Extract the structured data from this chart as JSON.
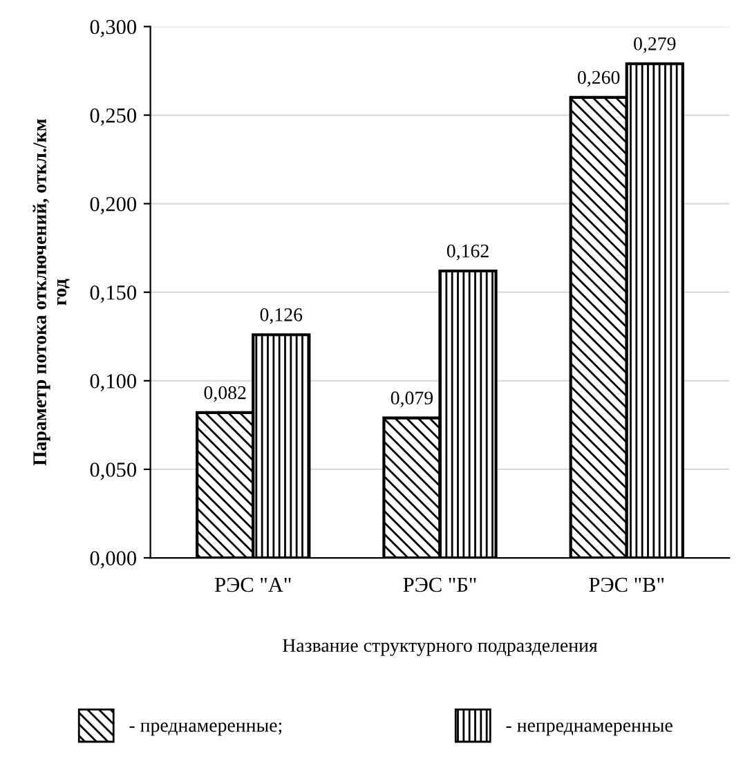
{
  "chart_data": {
    "type": "bar",
    "xlabel": "Название структурного подразделения",
    "ylabel": "Параметр потока отключений, откл./км\nгод",
    "categories": [
      "РЭС \"А\"",
      "РЭС \"Б\"",
      "РЭС \"В\""
    ],
    "series": [
      {
        "name": "- преднамеренные;",
        "color": "#000000",
        "values": [
          0.082,
          0.079,
          0.26
        ],
        "value_labels": [
          "0,082",
          "0,079",
          "0,260"
        ]
      },
      {
        "name": "- непреднамеренные",
        "color": "#000000",
        "values": [
          0.126,
          0.162,
          0.279
        ],
        "value_labels": [
          "0,126",
          "0,162",
          "0,279"
        ]
      }
    ],
    "ylim": [
      0,
      0.3
    ],
    "yticks": [
      {
        "value": 0,
        "label": "0,000"
      },
      {
        "value": 0.05,
        "label": "0,050"
      },
      {
        "value": 0.1,
        "label": "0,100"
      },
      {
        "value": 0.15,
        "label": "0,150"
      },
      {
        "value": 0.2,
        "label": "0,200"
      },
      {
        "value": 0.25,
        "label": "0,250"
      },
      {
        "value": 0.3,
        "label": "0,300"
      }
    ],
    "grid": "y",
    "legend": "bottom"
  }
}
